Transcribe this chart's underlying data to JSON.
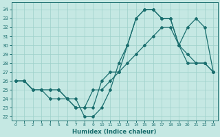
{
  "xlabel": "Humidex (Indice chaleur)",
  "bg_color": "#c5e8e3",
  "line_color": "#1a6e6e",
  "grid_color": "#9dd0ca",
  "xlim": [
    -0.5,
    23.5
  ],
  "ylim": [
    21.6,
    34.8
  ],
  "xticks": [
    0,
    1,
    2,
    3,
    4,
    5,
    6,
    7,
    8,
    9,
    10,
    11,
    12,
    13,
    14,
    15,
    16,
    17,
    18,
    19,
    20,
    21,
    22,
    23
  ],
  "yticks": [
    22,
    23,
    24,
    25,
    26,
    27,
    28,
    29,
    30,
    31,
    32,
    33,
    34
  ],
  "x_vals": [
    0,
    1,
    2,
    3,
    4,
    5,
    6,
    7,
    8,
    9,
    10,
    11,
    12,
    13,
    14,
    15,
    16,
    17,
    18,
    19,
    20,
    21,
    22,
    23
  ],
  "series": [
    [
      26,
      26,
      25,
      25,
      24,
      24,
      24,
      23,
      23,
      23,
      26,
      27,
      27,
      30,
      33,
      34,
      34,
      33,
      33,
      30,
      29,
      28,
      28,
      27
    ],
    [
      26,
      26,
      25,
      25,
      25,
      25,
      24,
      23,
      23,
      25,
      25,
      26,
      27,
      28,
      29,
      30,
      31,
      32,
      32,
      30,
      28,
      28,
      28,
      27
    ],
    [
      26,
      26,
      25,
      25,
      25,
      25,
      24,
      24,
      22,
      22,
      23,
      25,
      28,
      30,
      33,
      34,
      34,
      33,
      33,
      30,
      32,
      33,
      32,
      27
    ]
  ]
}
